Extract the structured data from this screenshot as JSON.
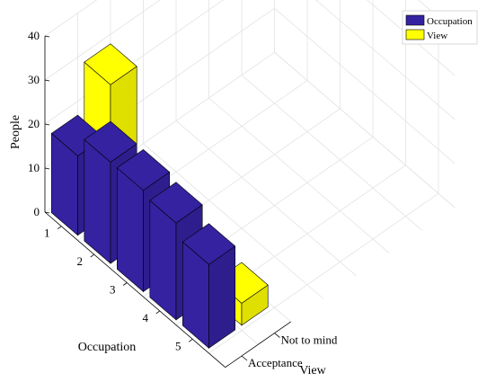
{
  "chart_data": {
    "type": "bar",
    "subtype": "3d-grouped",
    "title": "",
    "xlabel": "Occupation",
    "ylabel": "View",
    "zlabel": "People",
    "categories": [
      "1",
      "2",
      "3",
      "4",
      "5"
    ],
    "z_ticks": [
      "0",
      "10",
      "20",
      "30",
      "40"
    ],
    "y_ticks": [
      "Acceptance",
      "Not to mind"
    ],
    "zlim": [
      0,
      40
    ],
    "grid": true,
    "legend": "top-right",
    "series": [
      {
        "name": "Occupation",
        "color": "#3422a0",
        "values": [
          18,
          23,
          23,
          22,
          19
        ]
      },
      {
        "name": "View",
        "color": "#ffff00",
        "values": [
          29,
          0,
          0,
          0,
          5
        ]
      }
    ]
  }
}
